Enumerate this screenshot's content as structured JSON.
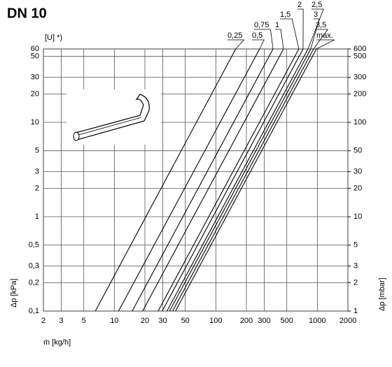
{
  "chart_data": {
    "type": "line",
    "title": "DN 10",
    "subtitle": "[U] *)",
    "x_label": "ṁ [kg/h]",
    "y_label": "Δp [kPa]",
    "y2_label": "Δp [mbar]",
    "log_x": true,
    "log_y": true,
    "grid": true,
    "color": "#000000",
    "xlim": [
      2,
      2000
    ],
    "ylim": [
      0.1,
      60
    ],
    "y2lim": [
      1,
      600
    ],
    "xticks": [
      2,
      3,
      5,
      10,
      20,
      30,
      50,
      100,
      200,
      300,
      500,
      1000,
      2000
    ],
    "yticks": [
      {
        "value": 0.1,
        "label": "0,1"
      },
      {
        "value": 0.2,
        "label": "0,2"
      },
      {
        "value": 0.3,
        "label": "0,3"
      },
      {
        "value": 0.5,
        "label": "0,5"
      },
      1,
      2,
      3,
      5,
      10,
      20,
      30,
      50,
      60
    ],
    "y2ticks": [
      1,
      2,
      3,
      5,
      10,
      20,
      30,
      50,
      100,
      200,
      300,
      500,
      600
    ],
    "series": [
      {
        "name": "0,25",
        "x": [
          6.5,
          157
        ],
        "values": [
          0.1,
          60
        ]
      },
      {
        "name": "0,5",
        "x": [
          11,
          270
        ],
        "values": [
          0.1,
          60
        ]
      },
      {
        "name": "0,75",
        "x": [
          15,
          366
        ],
        "values": [
          0.1,
          60
        ]
      },
      {
        "name": "1",
        "x": [
          19,
          464
        ],
        "values": [
          0.1,
          60
        ]
      },
      {
        "name": "1,5",
        "x": [
          27,
          657
        ],
        "values": [
          0.1,
          60
        ]
      },
      {
        "name": "2",
        "x": [
          29.6,
          724
        ],
        "values": [
          0.1,
          60
        ]
      },
      {
        "name": "2,5",
        "x": [
          33,
          809
        ],
        "values": [
          0.1,
          60
        ]
      },
      {
        "name": "3",
        "x": [
          35,
          861
        ],
        "values": [
          0.1,
          60
        ]
      },
      {
        "name": "3,5",
        "x": [
          37.5,
          918
        ],
        "values": [
          0.1,
          60
        ]
      },
      {
        "name": "max.",
        "x": [
          40,
          979
        ],
        "values": [
          0.1,
          60
        ]
      }
    ]
  }
}
